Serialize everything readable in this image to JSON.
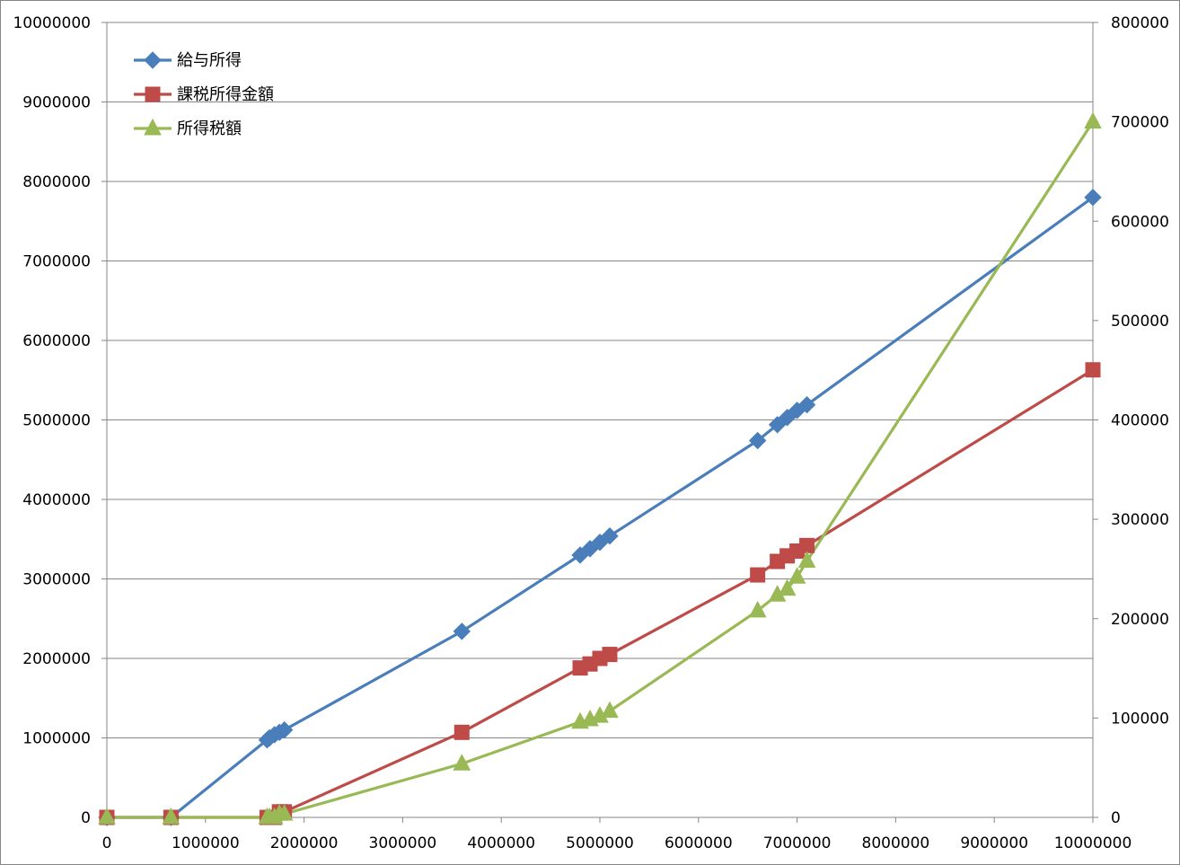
{
  "chart_data": {
    "type": "line",
    "grid": "horizontal",
    "legend_position": "top-left",
    "x_axis": {
      "min": 0,
      "max": 10000000,
      "ticks": [
        "0",
        "1000000",
        "2000000",
        "3000000",
        "4000000",
        "5000000",
        "6000000",
        "7000000",
        "8000000",
        "9000000",
        "10000000"
      ]
    },
    "y_left": {
      "min": 0,
      "max": 10000000,
      "ticks": [
        "0",
        "1000000",
        "2000000",
        "3000000",
        "4000000",
        "5000000",
        "6000000",
        "7000000",
        "8000000",
        "9000000",
        "10000000"
      ]
    },
    "y_right": {
      "min": 0,
      "max": 800000,
      "ticks": [
        "0",
        "100000",
        "200000",
        "300000",
        "400000",
        "500000",
        "600000",
        "700000",
        "800000"
      ]
    },
    "series": [
      {
        "name": "給与所得",
        "axis": "left",
        "color": "#4a7ebb",
        "marker": "diamond",
        "x": [
          0,
          650000,
          1625000,
          1650000,
          1700000,
          1750000,
          1800000,
          3600000,
          4800000,
          4900000,
          5000000,
          5100000,
          6600000,
          6800000,
          6900000,
          7000000,
          7100000,
          10000000
        ],
        "y": [
          0,
          0,
          975000,
          1000000,
          1040000,
          1070000,
          1100000,
          2340000,
          3300000,
          3380000,
          3460000,
          3540000,
          4740000,
          4940000,
          5030000,
          5120000,
          5190000,
          7800000
        ]
      },
      {
        "name": "課税所得金額",
        "axis": "left",
        "color": "#be4b48",
        "marker": "square",
        "x": [
          0,
          650000,
          1625000,
          1650000,
          1700000,
          1750000,
          1800000,
          3600000,
          4800000,
          4900000,
          5000000,
          5100000,
          6600000,
          6800000,
          6900000,
          7000000,
          7100000,
          10000000
        ],
        "y": [
          0,
          0,
          0,
          0,
          0,
          70000,
          70000,
          1070000,
          1880000,
          1930000,
          2000000,
          2050000,
          3050000,
          3220000,
          3290000,
          3350000,
          3420000,
          5630000
        ]
      },
      {
        "name": "所得税額",
        "axis": "right",
        "color": "#98b954",
        "marker": "triangle",
        "x": [
          0,
          650000,
          1625000,
          1650000,
          1700000,
          1750000,
          1800000,
          3600000,
          4800000,
          4900000,
          5000000,
          5100000,
          6600000,
          6800000,
          6900000,
          7000000,
          7100000,
          10000000
        ],
        "y": [
          0,
          0,
          0,
          0,
          0,
          3500,
          3500,
          54000,
          96000,
          98500,
          102000,
          107000,
          208000,
          224000,
          230000,
          242000,
          258000,
          700000
        ]
      }
    ]
  }
}
